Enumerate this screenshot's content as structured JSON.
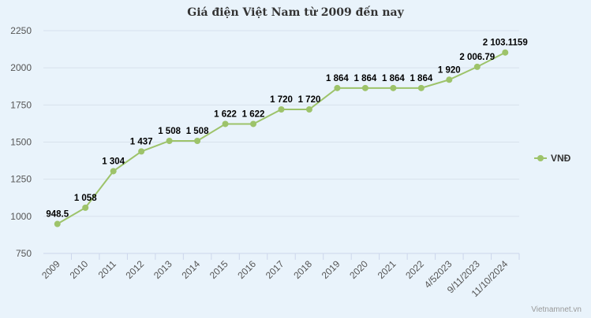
{
  "chart_data": {
    "type": "line",
    "title": "Giá điện Việt Nam từ 2009 đến nay",
    "xlabel": "",
    "ylabel": "",
    "ylim": [
      750,
      2250
    ],
    "yticks": [
      750,
      1000,
      1250,
      1500,
      1750,
      2000,
      2250
    ],
    "categories": [
      "2009",
      "2010",
      "2011",
      "2012",
      "2013",
      "2014",
      "2015",
      "2016",
      "2017",
      "2018",
      "2019",
      "2020",
      "2021",
      "2022",
      "4/52023",
      "9/11/2023",
      "11/10/2024"
    ],
    "series": [
      {
        "name": "VNĐ",
        "color": "#9dc36a",
        "values": [
          948.5,
          1058,
          1304,
          1437,
          1508,
          1508,
          1622,
          1622,
          1720,
          1720,
          1864,
          1864,
          1864,
          1864,
          1920,
          2006.79,
          2103.1159
        ],
        "labels": [
          "948.5",
          "1 058",
          "1 304",
          "1 437",
          "1 508",
          "1 508",
          "1 622",
          "1 622",
          "1 720",
          "1 720",
          "1 864",
          "1 864",
          "1 864",
          "1 864",
          "1 920",
          "2 006.79",
          "2 103.1159"
        ]
      }
    ],
    "grid": true,
    "legend": "right"
  },
  "credit": "Vietnamnet.vn"
}
